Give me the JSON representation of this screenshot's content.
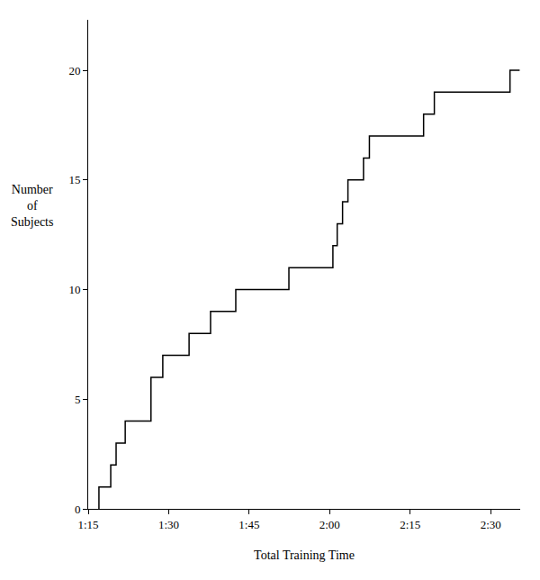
{
  "chart_data": {
    "type": "line",
    "line_style": "step",
    "color": "#000000",
    "x_label": "Total Training Time",
    "y_label": "Number of Subjects",
    "x": [
      77.0,
      77.0,
      79.2,
      80.2,
      81.9,
      86.7,
      88.9,
      93.8,
      97.8,
      102.5,
      112.4,
      120.6,
      121.4,
      122.4,
      123.4,
      126.3,
      127.4,
      137.5,
      139.5,
      153.6,
      155.4
    ],
    "values": [
      0,
      1,
      2,
      3,
      4,
      6,
      7,
      8,
      9,
      10,
      11,
      12,
      13,
      14,
      15,
      16,
      17,
      18,
      19,
      20,
      20
    ],
    "xlim": [
      75,
      155.5
    ],
    "xticks": [
      {
        "value": 75,
        "label": "1:15"
      },
      {
        "value": 90,
        "label": "1:30"
      },
      {
        "value": 105,
        "label": "1:45"
      },
      {
        "value": 120,
        "label": "2:00"
      },
      {
        "value": 135,
        "label": "2:15"
      },
      {
        "value": 150,
        "label": "2:30"
      }
    ],
    "ylim": [
      0,
      22.3
    ],
    "yticks": [
      0,
      5,
      10,
      15,
      20
    ],
    "grid": false
  }
}
